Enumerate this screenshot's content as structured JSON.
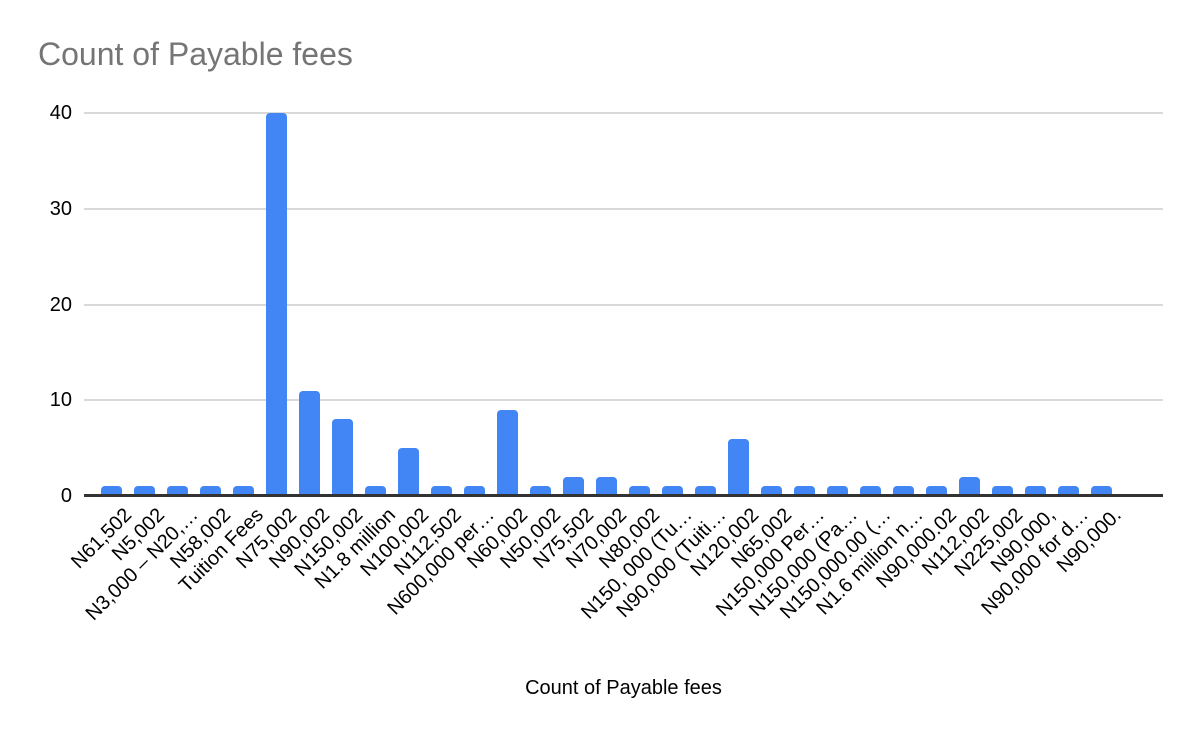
{
  "chart_data": {
    "type": "bar",
    "title": "Count of Payable fees",
    "xlabel": "Count of Payable fees",
    "ylabel": "",
    "ylim": [
      0,
      40
    ],
    "yticks": [
      0,
      10,
      20,
      30,
      40
    ],
    "grid": true,
    "legend_position": "none",
    "categories": [
      "N61,502",
      "N5,002",
      "N3,000 – N20,…",
      "N58,002",
      "Tuition Fees",
      "N75,002",
      "N90,002",
      "N150,002",
      "N1.8 million",
      "N100,002",
      "N112,502",
      "N600,000 per…",
      "N60,002",
      "N50,002",
      "N75,502",
      "N70,002",
      "N80,002",
      "N150, 000 (Tu…",
      "N90,000 (Tuiti…",
      "N120,002",
      "N65,002",
      "N150,000 Per…",
      "N150,000 (Pa…",
      "N150,000.00 (…",
      "N1.6 million n…",
      "N90,000.02",
      "N112,002",
      "N225,002",
      "N90,000,",
      "N90,000 for d…",
      "N90,000."
    ],
    "values": [
      1,
      1,
      1,
      1,
      1,
      40,
      11,
      8,
      1,
      5,
      1,
      1,
      9,
      1,
      2,
      2,
      1,
      1,
      1,
      6,
      1,
      1,
      1,
      1,
      1,
      1,
      2,
      1,
      1,
      1,
      1
    ]
  },
  "colors": {
    "bar": "#4285f4",
    "gridline": "#d9d9d9",
    "axis_line": "#333333",
    "title_text": "#757575",
    "tick_text": "#000000"
  }
}
